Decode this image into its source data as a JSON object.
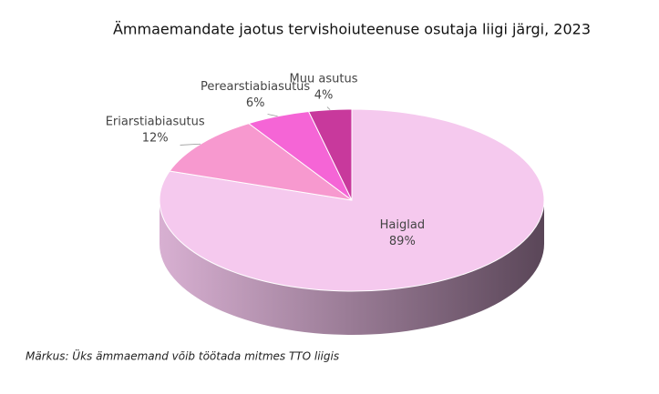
{
  "chart_data": {
    "type": "pie",
    "title": "Ämmaemandate jaotus tervishoiuteenuse osutaja liigi järgi, 2023",
    "categories": [
      "Haiglad",
      "Eriarstiabiasutus",
      "Perearstiabiasutus",
      "Muu asutus"
    ],
    "values": [
      89,
      12,
      6,
      4
    ],
    "value_labels": [
      "89%",
      "12%",
      "6%",
      "4%"
    ],
    "colors": [
      "#f5c9ee",
      "#f799cf",
      "#f565d6",
      "#c8399c"
    ],
    "note": "Märkus: Üks ämmaemand võib töötada mitmes TTO liigis"
  }
}
